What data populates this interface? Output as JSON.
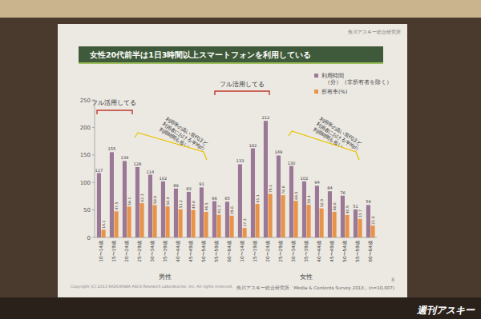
{
  "chart_data": {
    "type": "bar",
    "title": "女性20代前半は1日3時間以上スマートフォンを利用している",
    "header": "角川アスキー総合研究所",
    "categories": [
      "10〜14歳",
      "15〜19歳",
      "20〜24歳",
      "25〜29歳",
      "30〜34歳",
      "35〜39歳",
      "40〜44歳",
      "45〜49歳",
      "50〜54歳",
      "55〜59歳",
      "60〜64歳",
      "10〜14歳",
      "15〜19歳",
      "20〜24歳",
      "25〜29歳",
      "30〜34歳",
      "35〜39歳",
      "40〜44歳",
      "45〜49歳",
      "50〜54歳",
      "55〜59歳",
      "60〜64歳"
    ],
    "group_labels": [
      "男性",
      "女性"
    ],
    "series": [
      {
        "name": "利用時間（分）（非所有者を除く）",
        "color": "#9a7896",
        "values": [
          117,
          155,
          139,
          128,
          114,
          102,
          89,
          83,
          91,
          66,
          65,
          133,
          162,
          212,
          149,
          130,
          102,
          94,
          84,
          76,
          51,
          59
        ]
      },
      {
        "name": "所有率(%)",
        "color": "#e8934a",
        "values": [
          14.1,
          47.5,
          56.1,
          62.3,
          58.9,
          56.4,
          51.2,
          49.8,
          46.5,
          41.3,
          39.6,
          17.3,
          61.1,
          79.1,
          76.8,
          66.5,
          59.4,
          52.9,
          46.6,
          40.9,
          33.7,
          21.6
        ]
      }
    ],
    "ylim": [
      0,
      250
    ],
    "yticks": [
      0,
      50,
      100,
      150,
      200,
      250
    ],
    "grid": false,
    "legend": "upper right",
    "data_labels": true,
    "annotations": [
      "フル活用してる",
      "フル活用してる",
      "利用率の高い世代ほど利用者における平均の利用時間も長い",
      "利用率の高い世代ほど利用者における平均の利用時間も長い"
    ],
    "copyright": "Copyright (C) 2013 KADOKAWA ASCII Research Laboratories, Inc. All rights reserved.",
    "source": "角川アスキー総合研究所「Media & Contents Survey 2013」(n=10,007)",
    "page": 8,
    "watermark": "週刊アスキー"
  }
}
